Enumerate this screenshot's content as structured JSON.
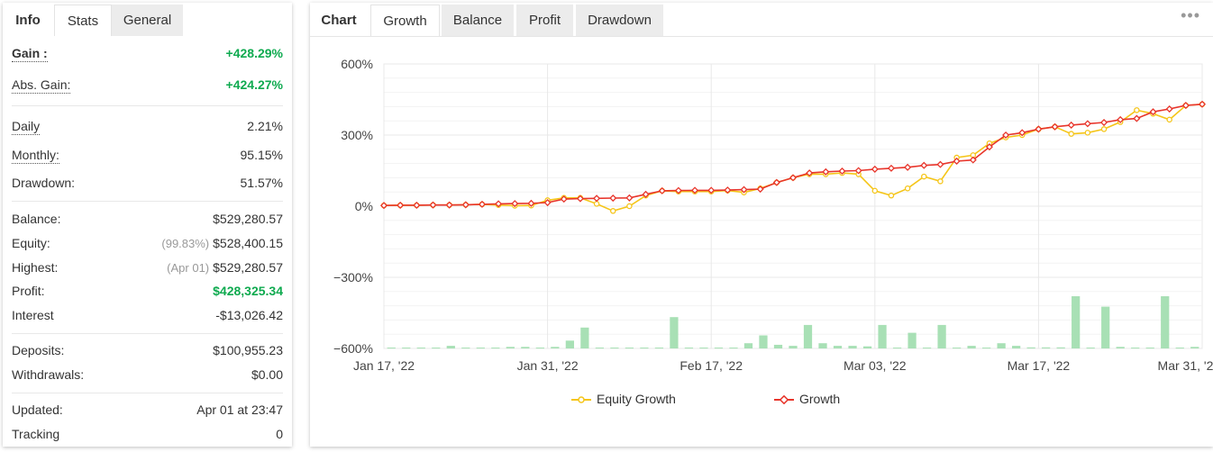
{
  "left_panel": {
    "tabs": [
      "Info",
      "Stats",
      "General"
    ],
    "stats": {
      "gain": {
        "label": "Gain :",
        "value": "+428.29%"
      },
      "abs_gain": {
        "label": "Abs. Gain:",
        "value": "+424.27%"
      },
      "daily": {
        "label": "Daily",
        "value": "2.21%"
      },
      "monthly": {
        "label": "Monthly:",
        "value": "95.15%"
      },
      "drawdown": {
        "label": "Drawdown:",
        "value": "51.57%"
      },
      "balance": {
        "label": "Balance:",
        "value": "$529,280.57"
      },
      "equity": {
        "label": "Equity:",
        "sub": "(99.83%)",
        "value": "$528,400.15"
      },
      "highest": {
        "label": "Highest:",
        "sub": "(Apr 01)",
        "value": "$529,280.57"
      },
      "profit": {
        "label": "Profit:",
        "value": "$428,325.34"
      },
      "interest": {
        "label": "Interest",
        "value": "-$13,026.42"
      },
      "deposits": {
        "label": "Deposits:",
        "value": "$100,955.23"
      },
      "withdrawals": {
        "label": "Withdrawals:",
        "value": "$0.00"
      },
      "updated": {
        "label": "Updated:",
        "value": "Apr 01 at 23:47"
      },
      "tracking": {
        "label": "Tracking",
        "value": "0"
      }
    }
  },
  "right_panel": {
    "title": "Chart",
    "tabs": [
      "Growth",
      "Balance",
      "Profit",
      "Drawdown"
    ],
    "more_icon": "more-dots-icon"
  },
  "colors": {
    "growth": "#e8352b",
    "equity": "#f5c518",
    "bars": "#a8e0b5",
    "grid": "#e8e8e8",
    "gain_green": "#0eaa4f"
  },
  "chart_data": {
    "type": "line",
    "y_tick_labels": [
      "600%",
      "300%",
      "0%",
      "−300%",
      "−600%"
    ],
    "y_ticks": [
      600,
      300,
      0,
      -300,
      -600
    ],
    "ylim": [
      -600,
      600
    ],
    "x_tick_labels": [
      "Jan 17, '22",
      "Jan 31, '22",
      "Feb 17, '22",
      "Mar 03, '22",
      "Mar 17, '22",
      "Mar 31, '22"
    ],
    "x_tick_index": [
      0,
      10,
      20,
      30,
      40,
      51
    ],
    "legend": [
      "Equity Growth",
      "Growth"
    ],
    "legend_position": "bottom-center",
    "grid": true,
    "series": [
      {
        "name": "Equity Growth",
        "values": [
          3,
          4,
          4,
          5,
          5,
          6,
          8,
          5,
          2,
          3,
          25,
          35,
          35,
          10,
          -20,
          0,
          45,
          65,
          62,
          62,
          62,
          66,
          58,
          75,
          100,
          120,
          135,
          135,
          140,
          135,
          65,
          45,
          75,
          125,
          105,
          205,
          215,
          265,
          290,
          300,
          325,
          335,
          305,
          310,
          325,
          355,
          405,
          390,
          365,
          425,
          430
        ]
      },
      {
        "name": "Growth",
        "values": [
          3,
          4,
          4,
          5,
          5,
          6,
          8,
          10,
          11,
          12,
          15,
          30,
          32,
          33,
          34,
          35,
          50,
          65,
          66,
          67,
          67,
          68,
          70,
          72,
          100,
          120,
          140,
          145,
          148,
          150,
          156,
          160,
          164,
          172,
          176,
          190,
          195,
          250,
          300,
          310,
          325,
          335,
          342,
          348,
          353,
          365,
          370,
          398,
          410,
          425,
          430
        ]
      },
      {
        "name": "Daily Gain (bars)",
        "values": [
          0,
          0,
          0,
          0,
          5,
          0,
          0,
          0,
          3,
          3,
          0,
          3,
          15,
          40,
          0,
          0,
          0,
          0,
          0,
          60,
          0,
          0,
          0,
          0,
          10,
          25,
          7,
          5,
          45,
          10,
          5,
          5,
          4,
          45,
          0,
          30,
          0,
          45,
          0,
          5,
          0,
          10,
          5,
          2,
          2,
          2,
          100,
          0,
          80,
          3,
          0,
          0,
          100,
          0,
          3
        ]
      }
    ],
    "bars_note": "Relative bar heights (0-100) of daily gain bars along the bottom of the chart"
  }
}
